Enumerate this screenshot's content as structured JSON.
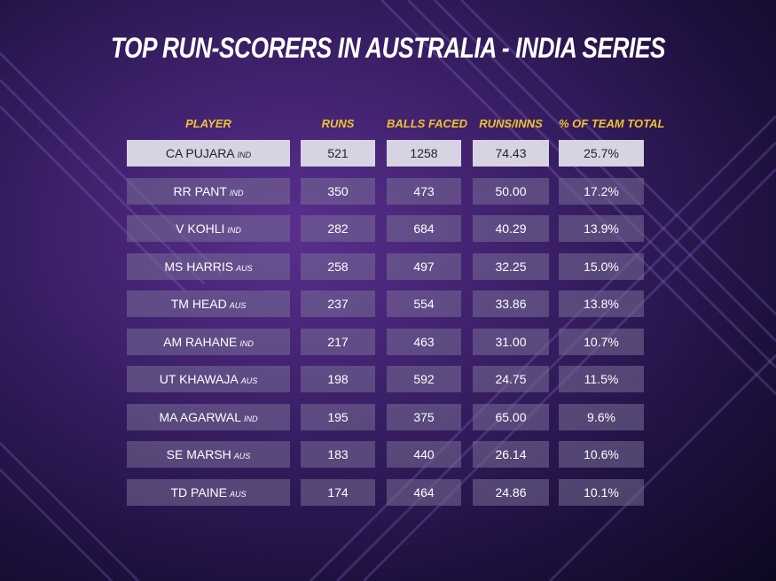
{
  "chart_data": {
    "type": "table",
    "title": "TOP RUN-SCORERS IN AUSTRALIA - INDIA SERIES",
    "columns": [
      "PLAYER",
      "RUNS",
      "BALLS FACED",
      "RUNS/INNS",
      "% OF TEAM TOTAL"
    ],
    "rows": [
      {
        "player": "CA PUJARA",
        "country": "IND",
        "runs": "521",
        "balls": "1258",
        "avg": "74.43",
        "pct": "25.7%"
      },
      {
        "player": "RR PANT",
        "country": "IND",
        "runs": "350",
        "balls": "473",
        "avg": "50.00",
        "pct": "17.2%"
      },
      {
        "player": "V KOHLI",
        "country": "IND",
        "runs": "282",
        "balls": "684",
        "avg": "40.29",
        "pct": "13.9%"
      },
      {
        "player": "MS HARRIS",
        "country": "AUS",
        "runs": "258",
        "balls": "497",
        "avg": "32.25",
        "pct": "15.0%"
      },
      {
        "player": "TM HEAD",
        "country": "AUS",
        "runs": "237",
        "balls": "554",
        "avg": "33.86",
        "pct": "13.8%"
      },
      {
        "player": "AM RAHANE",
        "country": "IND",
        "runs": "217",
        "balls": "463",
        "avg": "31.00",
        "pct": "10.7%"
      },
      {
        "player": "UT KHAWAJA",
        "country": "AUS",
        "runs": "198",
        "balls": "592",
        "avg": "24.75",
        "pct": "11.5%"
      },
      {
        "player": "MA AGARWAL",
        "country": "IND",
        "runs": "195",
        "balls": "375",
        "avg": "65.00",
        "pct": "9.6%"
      },
      {
        "player": "SE MARSH",
        "country": "AUS",
        "runs": "183",
        "balls": "440",
        "avg": "26.14",
        "pct": "10.6%"
      },
      {
        "player": "TD PAINE",
        "country": "AUS",
        "runs": "174",
        "balls": "464",
        "avg": "24.86",
        "pct": "10.1%"
      }
    ],
    "highlight_row": 0
  },
  "colors": {
    "header": "#f2c230",
    "highlight_cell": "#d7d3e2",
    "cell": "#786e96"
  }
}
